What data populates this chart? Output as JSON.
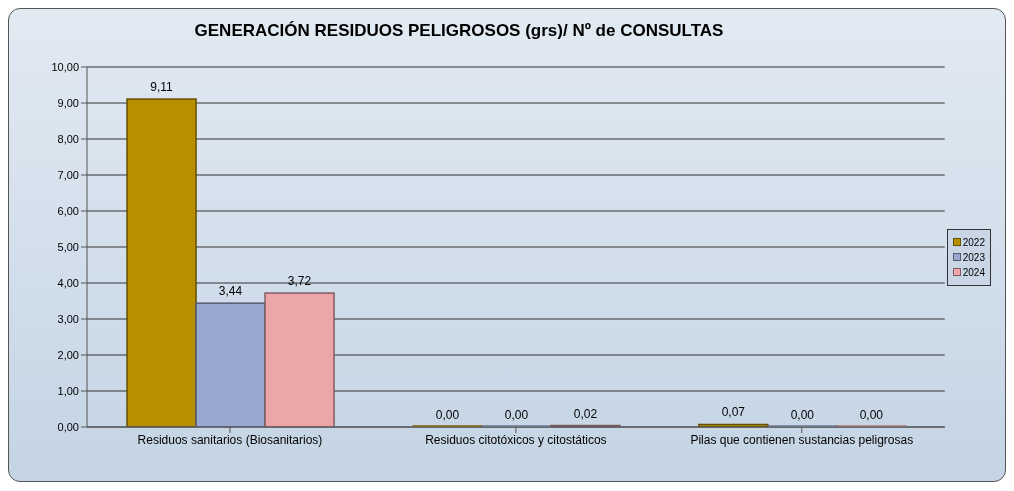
{
  "chart_data": {
    "type": "bar",
    "title": "GENERACIÓN RESIDUOS PELIGROSOS (grs)/ Nº de CONSULTAS",
    "categories": [
      "Residuos sanitarios (Biosanitarios)",
      "Residuos citotóxicos y citostáticos",
      "Pilas que contienen sustancias peligrosas"
    ],
    "series": [
      {
        "name": "2022",
        "color": "#b88f00",
        "values": [
          9.11,
          0,
          0.07
        ],
        "value_labels": [
          "9,11",
          "0,00",
          "0,07"
        ]
      },
      {
        "name": "2023",
        "color": "#98a8d0",
        "values": [
          3.44,
          0,
          0
        ],
        "value_labels": [
          "3,44",
          "0,00",
          "0,00"
        ]
      },
      {
        "name": "2024",
        "color": "#eca6aa",
        "values": [
          3.72,
          0.02,
          0
        ],
        "value_labels": [
          "3,72",
          "0,02",
          "0,00"
        ]
      }
    ],
    "ylim": [
      0,
      10
    ],
    "yticks": [
      {
        "value": 0,
        "label": "0,00"
      },
      {
        "value": 1,
        "label": "1,00"
      },
      {
        "value": 2,
        "label": "2,00"
      },
      {
        "value": 3,
        "label": "3,00"
      },
      {
        "value": 4,
        "label": "4,00"
      },
      {
        "value": 5,
        "label": "5,00"
      },
      {
        "value": 6,
        "label": "6,00"
      },
      {
        "value": 7,
        "label": "7,00"
      },
      {
        "value": 8,
        "label": "8,00"
      },
      {
        "value": 9,
        "label": "9,00"
      },
      {
        "value": 10,
        "label": "10,00"
      }
    ],
    "grid": "y",
    "legend": "right"
  }
}
